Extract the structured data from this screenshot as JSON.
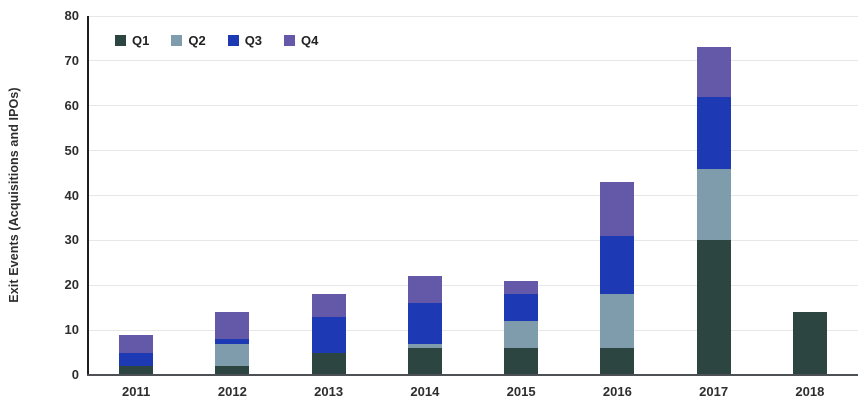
{
  "chart_data": {
    "type": "bar",
    "stacked": true,
    "title": "",
    "xlabel": "",
    "ylabel": "Exit Events (Acquisitions and IPOs)",
    "categories": [
      "2011",
      "2012",
      "2013",
      "2014",
      "2015",
      "2016",
      "2017",
      "2018"
    ],
    "series": [
      {
        "name": "Q1",
        "color": "#2d4540",
        "values": [
          2,
          2,
          5,
          6,
          6,
          6,
          30,
          14
        ]
      },
      {
        "name": "Q2",
        "color": "#7f9cad",
        "values": [
          0,
          5,
          0,
          1,
          6,
          12,
          16,
          0
        ]
      },
      {
        "name": "Q3",
        "color": "#1d3ab4",
        "values": [
          3,
          1,
          8,
          9,
          6,
          13,
          16,
          0
        ]
      },
      {
        "name": "Q4",
        "color": "#6458a8",
        "values": [
          4,
          6,
          5,
          6,
          3,
          12,
          11,
          0
        ]
      }
    ],
    "totals": [
      9,
      14,
      18,
      22,
      21,
      43,
      73,
      14
    ],
    "ylim": [
      0,
      80
    ],
    "yticks": [
      0,
      10,
      20,
      30,
      40,
      50,
      60,
      70,
      80
    ],
    "grid": "horizontal",
    "legend_position": "top-left"
  }
}
